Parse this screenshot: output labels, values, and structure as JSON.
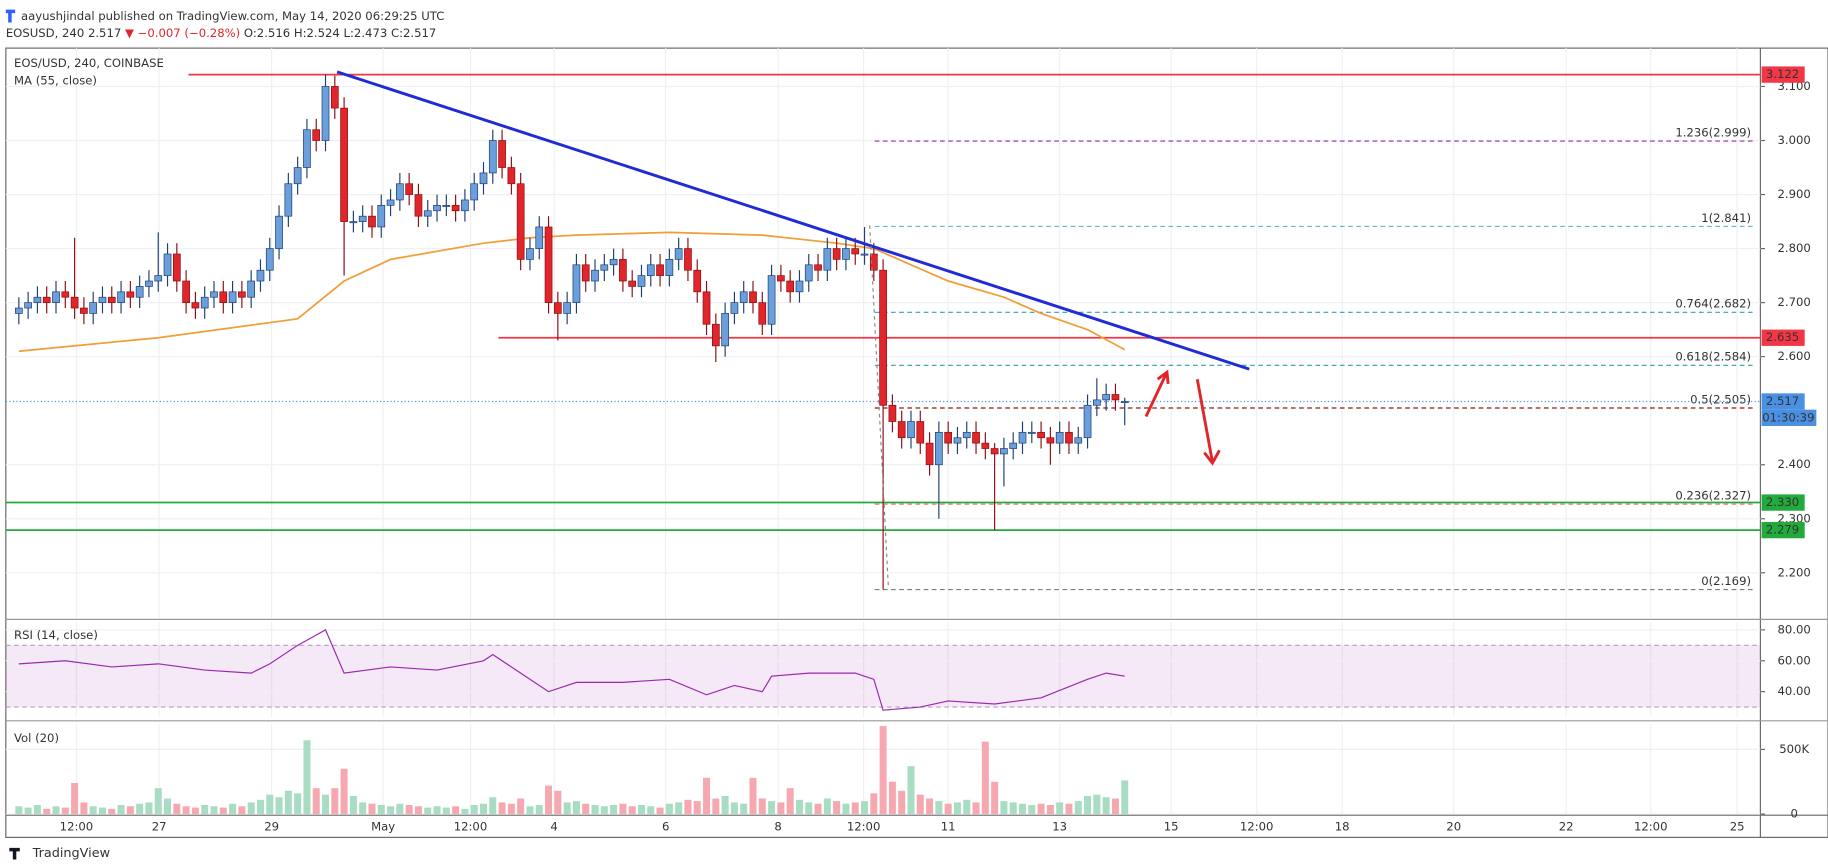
{
  "header": {
    "publisher": "aayushjindal published on TradingView.com, May 14, 2020 06:29:25 UTC",
    "symbol": "EOSUSD, 240",
    "last": "2.517",
    "change": "▼ −0.007 (−0.28%)",
    "ohlc": "O:2.516 H:2.524 L:2.473 C:2.517"
  },
  "footer": "TradingView",
  "chart_data": [
    {
      "type": "candlestick",
      "title": "EOS/USD, 240, COINBASE",
      "indicator_label": "MA (55, close)",
      "up_color": "#6a9fdc",
      "down_color": "#e0262b",
      "open": [
        2.68,
        2.69,
        2.7,
        2.71,
        2.7,
        2.72,
        2.71,
        2.69,
        2.68,
        2.7,
        2.71,
        2.7,
        2.72,
        2.71,
        2.73,
        2.74,
        2.75,
        2.79,
        2.74,
        2.7,
        2.69,
        2.71,
        2.72,
        2.7,
        2.72,
        2.71,
        2.74,
        2.76,
        2.8,
        2.86,
        2.92,
        2.95,
        3.02,
        3.0,
        3.1,
        3.06,
        2.85,
        2.85,
        2.86,
        2.84,
        2.88,
        2.89,
        2.92,
        2.9,
        2.86,
        2.87,
        2.88,
        2.88,
        2.87,
        2.89,
        2.92,
        2.94,
        3.0,
        2.95,
        2.92,
        2.78,
        2.8,
        2.84,
        2.7,
        2.68,
        2.7,
        2.77,
        2.74,
        2.76,
        2.77,
        2.78,
        2.74,
        2.73,
        2.75,
        2.77,
        2.75,
        2.78,
        2.8,
        2.76,
        2.72,
        2.66,
        2.62,
        2.68,
        2.7,
        2.72,
        2.7,
        2.66,
        2.75,
        2.74,
        2.72,
        2.74,
        2.77,
        2.76,
        2.8,
        2.78,
        2.8,
        2.79,
        2.79,
        2.76,
        2.51,
        2.48,
        2.45,
        2.48,
        2.44,
        2.4,
        2.46,
        2.44,
        2.45,
        2.46,
        2.44,
        2.43,
        2.42,
        2.43,
        2.44,
        2.46,
        2.46,
        2.45,
        2.44,
        2.46,
        2.44,
        2.45,
        2.51,
        2.52,
        2.53,
        2.516
      ],
      "high": [
        2.71,
        2.72,
        2.73,
        2.73,
        2.74,
        2.74,
        2.82,
        2.71,
        2.72,
        2.73,
        2.73,
        2.74,
        2.74,
        2.75,
        2.76,
        2.83,
        2.81,
        2.81,
        2.76,
        2.72,
        2.73,
        2.74,
        2.74,
        2.74,
        2.74,
        2.76,
        2.78,
        2.82,
        2.88,
        2.94,
        2.97,
        3.04,
        3.04,
        3.122,
        3.12,
        3.08,
        2.87,
        2.88,
        2.88,
        2.9,
        2.91,
        2.94,
        2.94,
        2.92,
        2.89,
        2.9,
        2.9,
        2.9,
        2.91,
        2.94,
        2.96,
        3.02,
        3.02,
        2.97,
        2.94,
        2.82,
        2.86,
        2.86,
        2.72,
        2.72,
        2.79,
        2.79,
        2.78,
        2.79,
        2.8,
        2.8,
        2.76,
        2.77,
        2.79,
        2.79,
        2.8,
        2.82,
        2.82,
        2.78,
        2.74,
        2.68,
        2.7,
        2.72,
        2.74,
        2.74,
        2.72,
        2.77,
        2.77,
        2.76,
        2.76,
        2.79,
        2.79,
        2.82,
        2.82,
        2.82,
        2.82,
        2.84,
        2.81,
        2.78,
        2.53,
        2.5,
        2.5,
        2.5,
        2.46,
        2.48,
        2.48,
        2.47,
        2.48,
        2.48,
        2.46,
        2.44,
        2.45,
        2.46,
        2.48,
        2.48,
        2.48,
        2.47,
        2.48,
        2.48,
        2.47,
        2.53,
        2.56,
        2.55,
        2.55,
        2.524
      ],
      "low": [
        2.66,
        2.67,
        2.68,
        2.68,
        2.68,
        2.69,
        2.67,
        2.66,
        2.66,
        2.68,
        2.68,
        2.68,
        2.69,
        2.69,
        2.71,
        2.72,
        2.73,
        2.72,
        2.68,
        2.67,
        2.67,
        2.69,
        2.68,
        2.68,
        2.69,
        2.69,
        2.72,
        2.74,
        2.78,
        2.84,
        2.9,
        2.93,
        2.98,
        2.98,
        3.04,
        2.75,
        2.83,
        2.83,
        2.82,
        2.82,
        2.86,
        2.87,
        2.88,
        2.84,
        2.84,
        2.85,
        2.86,
        2.85,
        2.85,
        2.87,
        2.9,
        2.92,
        2.93,
        2.9,
        2.76,
        2.76,
        2.78,
        2.68,
        2.63,
        2.66,
        2.68,
        2.72,
        2.72,
        2.74,
        2.75,
        2.72,
        2.71,
        2.71,
        2.73,
        2.73,
        2.73,
        2.76,
        2.74,
        2.7,
        2.64,
        2.59,
        2.6,
        2.66,
        2.68,
        2.68,
        2.64,
        2.64,
        2.72,
        2.7,
        2.7,
        2.72,
        2.74,
        2.74,
        2.76,
        2.76,
        2.77,
        2.77,
        2.74,
        2.169,
        2.46,
        2.43,
        2.43,
        2.42,
        2.38,
        2.3,
        2.42,
        2.42,
        2.43,
        2.42,
        2.41,
        2.279,
        2.36,
        2.41,
        2.42,
        2.44,
        2.43,
        2.4,
        2.42,
        2.42,
        2.42,
        2.43,
        2.49,
        2.5,
        2.5,
        2.473
      ],
      "close": [
        2.69,
        2.7,
        2.71,
        2.7,
        2.72,
        2.71,
        2.69,
        2.68,
        2.7,
        2.71,
        2.7,
        2.72,
        2.71,
        2.73,
        2.74,
        2.75,
        2.79,
        2.74,
        2.7,
        2.69,
        2.71,
        2.72,
        2.7,
        2.72,
        2.71,
        2.74,
        2.76,
        2.8,
        2.86,
        2.92,
        2.95,
        3.02,
        3.0,
        3.1,
        3.06,
        2.85,
        2.85,
        2.86,
        2.84,
        2.88,
        2.89,
        2.92,
        2.9,
        2.86,
        2.87,
        2.88,
        2.88,
        2.87,
        2.89,
        2.92,
        2.94,
        3.0,
        2.95,
        2.92,
        2.78,
        2.8,
        2.84,
        2.7,
        2.68,
        2.7,
        2.77,
        2.74,
        2.76,
        2.77,
        2.78,
        2.74,
        2.73,
        2.75,
        2.77,
        2.75,
        2.78,
        2.8,
        2.76,
        2.72,
        2.66,
        2.62,
        2.68,
        2.7,
        2.72,
        2.7,
        2.66,
        2.75,
        2.74,
        2.72,
        2.74,
        2.77,
        2.76,
        2.8,
        2.78,
        2.8,
        2.79,
        2.79,
        2.76,
        2.51,
        2.48,
        2.45,
        2.48,
        2.44,
        2.4,
        2.46,
        2.44,
        2.45,
        2.46,
        2.44,
        2.43,
        2.42,
        2.43,
        2.44,
        2.46,
        2.46,
        2.45,
        2.44,
        2.46,
        2.44,
        2.45,
        2.51,
        2.52,
        2.53,
        2.52,
        2.517
      ],
      "ma": {
        "color": "#f29d38",
        "x": [
          0,
          15,
          30,
          35,
          40,
          50,
          55,
          60,
          70,
          80,
          88,
          92,
          96,
          100,
          106,
          110,
          115,
          119
        ],
        "values": [
          2.61,
          2.635,
          2.67,
          2.74,
          2.78,
          2.81,
          2.82,
          2.825,
          2.83,
          2.825,
          2.81,
          2.8,
          2.77,
          2.74,
          2.71,
          2.68,
          2.65,
          2.613
        ]
      },
      "trendline": {
        "color": "#1f2bd6",
        "x": [
          34.25,
          132.4
        ],
        "y": [
          3.127,
          2.577
        ]
      },
      "levels": [
        {
          "value": 3.122,
          "label": "3.122",
          "color": "#f23645",
          "from": 18.25
        },
        {
          "value": 2.635,
          "label": "2.635",
          "color": "#f23645",
          "from": 51.6
        },
        {
          "value": 2.33,
          "label": "2.330",
          "color": "#22ab3a",
          "from": -1.4
        },
        {
          "value": 2.279,
          "label": "2.279",
          "color": "#22ab3a",
          "from": -1.4
        }
      ],
      "last_price": {
        "value": 2.517,
        "label": "2.517",
        "color": "#4a90e2"
      },
      "countdown": "01:30:39",
      "fib": {
        "from": 92.1,
        "levels": [
          {
            "value": 2.999,
            "label": "1.236(2.999)",
            "color": "#9c27b0"
          },
          {
            "value": 2.841,
            "label": "1(2.841)",
            "color": "#5eb5d6"
          },
          {
            "value": 2.682,
            "label": "0.764(2.682)",
            "color": "#2d9fc7"
          },
          {
            "value": 2.584,
            "label": "0.618(2.584)",
            "color": "#26a69a"
          },
          {
            "value": 2.505,
            "label": "0.5(2.505)",
            "color": "#8b1a1a"
          },
          {
            "value": 2.327,
            "label": "0.236(2.327)",
            "color": "#f4776a"
          },
          {
            "value": 2.169,
            "label": "0(2.169)",
            "color": "#787b86"
          }
        ]
      },
      "xlim": [
        -1.4,
        187.4
      ],
      "ylim": [
        2.116,
        3.171
      ],
      "yticks": [
        {
          "value": 2.2,
          "label": "2.200"
        },
        {
          "value": 2.3,
          "label": "2.300"
        },
        {
          "value": 2.4,
          "label": "2.400"
        },
        {
          "value": 2.6,
          "label": "2.600"
        },
        {
          "value": 2.7,
          "label": "2.700"
        },
        {
          "value": 2.8,
          "label": "2.800"
        },
        {
          "value": 2.9,
          "label": "2.900"
        },
        {
          "value": 3.0,
          "label": "3.000"
        },
        {
          "value": 3.1,
          "label": "3.100"
        }
      ],
      "xticks": [
        {
          "value": 6.2,
          "label": "12:00"
        },
        {
          "value": 15.1,
          "label": "27"
        },
        {
          "value": 27.2,
          "label": "29"
        },
        {
          "value": 39.2,
          "label": "May"
        },
        {
          "value": 48.6,
          "label": "12:00"
        },
        {
          "value": 57.6,
          "label": "4"
        },
        {
          "value": 69.6,
          "label": "6"
        },
        {
          "value": 81.7,
          "label": "8"
        },
        {
          "value": 90.9,
          "label": "12:00"
        },
        {
          "value": 100,
          "label": "11"
        },
        {
          "value": 112,
          "label": "13"
        },
        {
          "value": 124,
          "label": "15"
        },
        {
          "value": 133.2,
          "label": "12:00"
        },
        {
          "value": 142.4,
          "label": "18"
        },
        {
          "value": 154.4,
          "label": "20"
        },
        {
          "value": 166.5,
          "label": "22"
        },
        {
          "value": 175.6,
          "label": "12:00"
        },
        {
          "value": 184.9,
          "label": "25"
        }
      ],
      "grid": true
    },
    {
      "type": "line",
      "title": "RSI (14, close)",
      "color": "#9c27b0",
      "band": [
        30,
        70
      ],
      "x": [
        0,
        5,
        10,
        15,
        20,
        25,
        27,
        30,
        33,
        35,
        40,
        45,
        50,
        51,
        54,
        57,
        60,
        65,
        70,
        74,
        77,
        80,
        81,
        85,
        90,
        92,
        93,
        97,
        100,
        105,
        110,
        115,
        117,
        119
      ],
      "values": [
        58,
        60,
        56,
        58,
        54,
        52,
        58,
        70,
        80,
        52,
        56,
        54,
        60,
        64,
        52,
        40,
        46,
        46,
        48,
        38,
        44,
        40,
        50,
        52,
        52,
        48,
        28,
        30,
        34,
        32,
        36,
        48,
        52,
        50
      ],
      "xlim": [
        -1.4,
        187.4
      ],
      "ylim": [
        23.4,
        85.3
      ],
      "yticks": [
        {
          "value": 40,
          "label": "40.00"
        },
        {
          "value": 60,
          "label": "60.00"
        },
        {
          "value": 80,
          "label": "80.00"
        }
      ]
    },
    {
      "type": "bar",
      "title": "Vol (20)",
      "values": [
        60000,
        50000,
        70000,
        40000,
        60000,
        50000,
        240000,
        90000,
        60000,
        50000,
        40000,
        70000,
        60000,
        80000,
        90000,
        200000,
        120000,
        80000,
        60000,
        50000,
        70000,
        60000,
        50000,
        80000,
        60000,
        90000,
        110000,
        150000,
        130000,
        180000,
        160000,
        570000,
        200000,
        150000,
        200000,
        350000,
        140000,
        90000,
        80000,
        70000,
        60000,
        80000,
        70000,
        60000,
        50000,
        60000,
        50000,
        60000,
        40000,
        70000,
        80000,
        130000,
        90000,
        80000,
        120000,
        60000,
        70000,
        220000,
        180000,
        90000,
        100000,
        80000,
        70000,
        60000,
        70000,
        80000,
        60000,
        70000,
        60000,
        50000,
        80000,
        90000,
        110000,
        100000,
        280000,
        120000,
        140000,
        90000,
        80000,
        280000,
        120000,
        100000,
        90000,
        200000,
        110000,
        90000,
        80000,
        120000,
        100000,
        80000,
        90000,
        100000,
        160000,
        680000,
        250000,
        180000,
        370000,
        150000,
        120000,
        100000,
        80000,
        90000,
        110000,
        90000,
        560000,
        250000,
        100000,
        90000,
        80000,
        70000,
        80000,
        70000,
        90000,
        80000,
        100000,
        140000,
        150000,
        130000,
        120000,
        260000
      ],
      "up_color": "#a8dcc3",
      "down_color": "#f5a8af",
      "xlim": [
        -1.4,
        187.4
      ],
      "ylim": [
        0,
        694000
      ],
      "yticks": [
        0,
        {
          "value": 500000,
          "label": "500K"
        }
      ]
    }
  ]
}
